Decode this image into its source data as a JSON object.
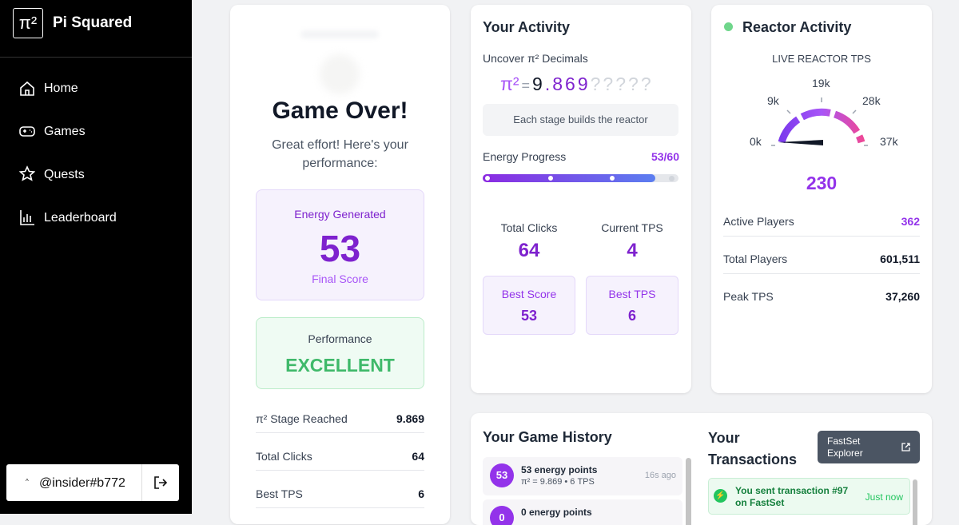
{
  "sidebar": {
    "logo": "π²",
    "brand": "Pi Squared",
    "nav": [
      "Home",
      "Games",
      "Quests",
      "Leaderboard"
    ],
    "user": "@insider#b772"
  },
  "game_over": {
    "title": "Game Over!",
    "subtitle": "Great effort! Here's your performance:",
    "energy": {
      "label": "Energy Generated",
      "value": "53",
      "caption": "Final Score"
    },
    "performance": {
      "label": "Performance",
      "value": "EXCELLENT"
    },
    "rows": [
      [
        "π² Stage Reached",
        "9.869"
      ],
      [
        "Total Clicks",
        "64"
      ],
      [
        "Best TPS",
        "6"
      ]
    ]
  },
  "activity": {
    "title": "Your Activity",
    "subtitle": "Uncover π² Decimals",
    "equation": {
      "symbol": "π²",
      "equals": "=",
      "integer": "9",
      "dot": ".",
      "decimals": [
        "8",
        "6",
        "9"
      ],
      "hidden": [
        "?",
        "?",
        "?",
        "?",
        "?"
      ]
    },
    "hint": "Each stage builds the reactor",
    "progress_label": "Energy Progress",
    "progress": "53/60",
    "stats": [
      [
        "Total Clicks",
        "64"
      ],
      [
        "Current TPS",
        "4"
      ]
    ],
    "best": [
      [
        "Best Score",
        "53"
      ],
      [
        "Best TPS",
        "6"
      ]
    ]
  },
  "reactor": {
    "title": "Reactor Activity",
    "subtitle": "LIVE REACTOR TPS",
    "gauge_labels": [
      "0k",
      "9k",
      "19k",
      "28k",
      "37k"
    ],
    "tps": "230",
    "rows": [
      [
        "Active Players",
        "362"
      ],
      [
        "Total Players",
        "601,511"
      ],
      [
        "Peak TPS",
        "37,260"
      ]
    ]
  },
  "history": {
    "title": "Your Game History",
    "items": [
      {
        "badge": "53",
        "title": "53 energy points",
        "detail": "π² = 9.869 • 6 TPS",
        "time": "16s ago"
      },
      {
        "badge": "0",
        "title": "0 energy points"
      }
    ]
  },
  "transactions": {
    "title": "Your Transactions",
    "button": "FastSet Explorer",
    "items": [
      {
        "text": "You sent transaction #97 on FastSet",
        "time": "Just now"
      }
    ]
  }
}
